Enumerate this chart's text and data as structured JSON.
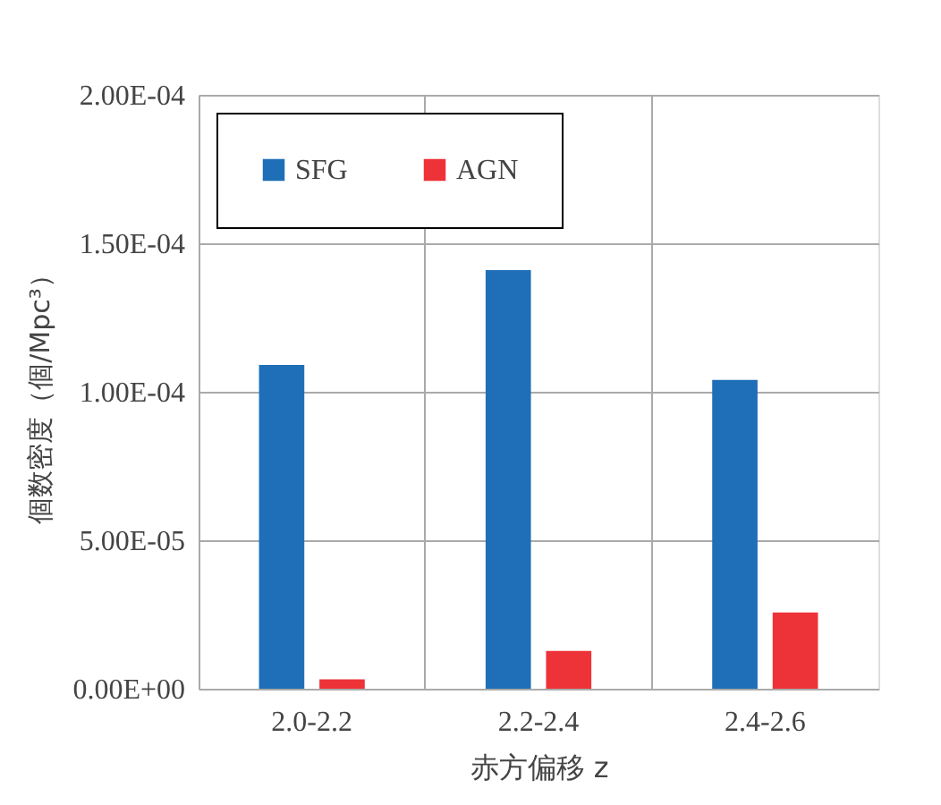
{
  "chart_data": {
    "type": "bar",
    "xlabel": "赤方偏移  z",
    "ylabel": "個数密度（個/Mpc³）",
    "categories": [
      "2.0-2.2",
      "2.2-2.4",
      "2.4-2.6"
    ],
    "series": [
      {
        "name": "SFG",
        "color": "#1f6fb8",
        "values": [
          0.000109,
          0.000141,
          0.000104
        ]
      },
      {
        "name": "AGN",
        "color": "#ee3338",
        "values": [
          3.2e-06,
          1.27e-05,
          2.57e-05
        ]
      }
    ],
    "ylim": [
      0,
      0.0002
    ],
    "yticks": [
      {
        "value": 0,
        "label": "0.00E+00"
      },
      {
        "value": 5e-05,
        "label": "5.00E-05"
      },
      {
        "value": 0.0001,
        "label": "1.00E-04"
      },
      {
        "value": 0.00015,
        "label": "1.50E-04"
      },
      {
        "value": 0.0002,
        "label": "2.00E-04"
      }
    ],
    "grid": true,
    "legend": "top left"
  }
}
